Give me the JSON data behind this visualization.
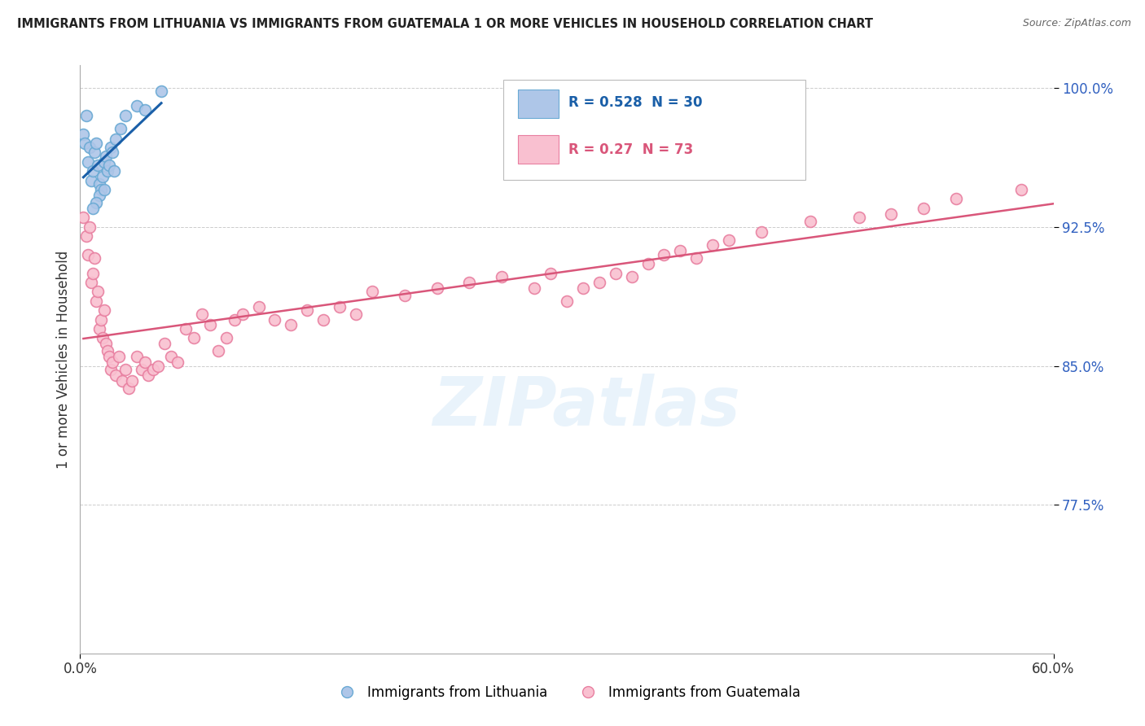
{
  "title": "IMMIGRANTS FROM LITHUANIA VS IMMIGRANTS FROM GUATEMALA 1 OR MORE VEHICLES IN HOUSEHOLD CORRELATION CHART",
  "source": "Source: ZipAtlas.com",
  "ylabel": "1 or more Vehicles in Household",
  "xmin": 0.0,
  "xmax": 0.6,
  "ymin": 0.695,
  "ymax": 1.012,
  "yticks": [
    0.775,
    0.85,
    0.925,
    1.0
  ],
  "ytick_labels": [
    "77.5%",
    "85.0%",
    "92.5%",
    "100.0%"
  ],
  "xticks": [
    0.0,
    0.6
  ],
  "xtick_labels": [
    "0.0%",
    "60.0%"
  ],
  "legend1_label": "Immigrants from Lithuania",
  "legend2_label": "Immigrants from Guatemala",
  "R_lithuania": 0.528,
  "N_lithuania": 30,
  "R_guatemala": 0.27,
  "N_guatemala": 73,
  "blue_color": "#aec6e8",
  "blue_edge": "#6aaad4",
  "pink_color": "#f9c0d0",
  "pink_edge": "#e87fa0",
  "blue_line_color": "#1a5fa8",
  "pink_line_color": "#d9567a",
  "marker_size": 100,
  "lith_x": [
    0.002,
    0.003,
    0.004,
    0.005,
    0.006,
    0.007,
    0.008,
    0.009,
    0.01,
    0.011,
    0.012,
    0.013,
    0.014,
    0.015,
    0.016,
    0.017,
    0.018,
    0.019,
    0.02,
    0.021,
    0.025,
    0.028,
    0.035,
    0.04,
    0.012,
    0.01,
    0.008,
    0.015,
    0.022,
    0.05
  ],
  "lith_y": [
    0.975,
    0.97,
    0.985,
    0.96,
    0.968,
    0.95,
    0.955,
    0.965,
    0.97,
    0.958,
    0.948,
    0.945,
    0.952,
    0.96,
    0.963,
    0.955,
    0.958,
    0.968,
    0.965,
    0.955,
    0.978,
    0.985,
    0.99,
    0.988,
    0.942,
    0.938,
    0.935,
    0.945,
    0.972,
    0.998
  ],
  "guat_x": [
    0.002,
    0.004,
    0.005,
    0.006,
    0.007,
    0.008,
    0.009,
    0.01,
    0.011,
    0.012,
    0.013,
    0.014,
    0.015,
    0.016,
    0.017,
    0.018,
    0.019,
    0.02,
    0.022,
    0.024,
    0.026,
    0.028,
    0.03,
    0.032,
    0.035,
    0.038,
    0.04,
    0.042,
    0.045,
    0.048,
    0.052,
    0.056,
    0.06,
    0.065,
    0.07,
    0.075,
    0.08,
    0.085,
    0.09,
    0.095,
    0.1,
    0.11,
    0.12,
    0.13,
    0.14,
    0.15,
    0.16,
    0.17,
    0.18,
    0.2,
    0.22,
    0.24,
    0.26,
    0.28,
    0.29,
    0.3,
    0.31,
    0.32,
    0.33,
    0.34,
    0.35,
    0.36,
    0.37,
    0.38,
    0.39,
    0.4,
    0.42,
    0.45,
    0.48,
    0.5,
    0.52,
    0.54,
    0.58
  ],
  "guat_y": [
    0.93,
    0.92,
    0.91,
    0.925,
    0.895,
    0.9,
    0.908,
    0.885,
    0.89,
    0.87,
    0.875,
    0.865,
    0.88,
    0.862,
    0.858,
    0.855,
    0.848,
    0.852,
    0.845,
    0.855,
    0.842,
    0.848,
    0.838,
    0.842,
    0.855,
    0.848,
    0.852,
    0.845,
    0.848,
    0.85,
    0.862,
    0.855,
    0.852,
    0.87,
    0.865,
    0.878,
    0.872,
    0.858,
    0.865,
    0.875,
    0.878,
    0.882,
    0.875,
    0.872,
    0.88,
    0.875,
    0.882,
    0.878,
    0.89,
    0.888,
    0.892,
    0.895,
    0.898,
    0.892,
    0.9,
    0.885,
    0.892,
    0.895,
    0.9,
    0.898,
    0.905,
    0.91,
    0.912,
    0.908,
    0.915,
    0.918,
    0.922,
    0.928,
    0.93,
    0.932,
    0.935,
    0.94,
    0.945
  ],
  "watermark_text": "ZIPatlas",
  "background_color": "#ffffff",
  "grid_color": "#cccccc",
  "right_tick_color": "#3060c0"
}
